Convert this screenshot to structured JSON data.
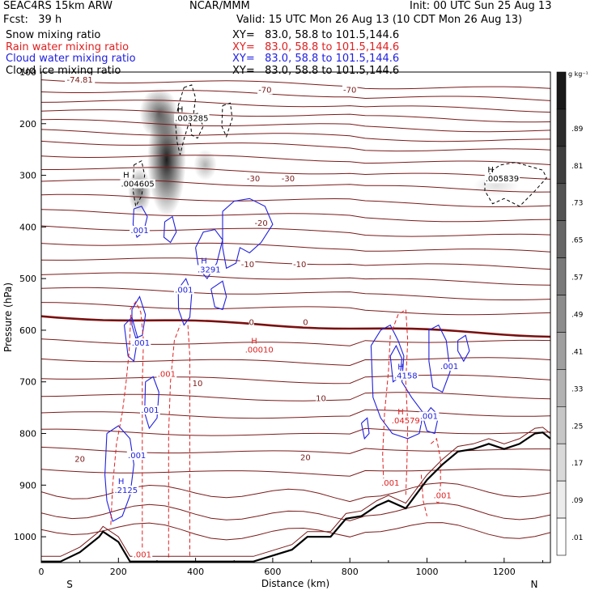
{
  "header": {
    "model": "SEAC4RS 15km ARW",
    "org": "NCAR/MMM",
    "init": "Init: 00 UTC Sun 25 Aug 13",
    "fcst": "Fcst:   39 h",
    "valid": "Valid: 15 UTC Mon 26 Aug 13 (10 CDT Mon 26 Aug 13)",
    "fields": [
      {
        "name": "Snow mixing ratio",
        "xy": "XY=   83.0, 58.8 to 101.5,144.6",
        "color": "#000000"
      },
      {
        "name": "Rain water mixing ratio",
        "xy": "XY=   83.0, 58.8 to 101.5,144.6",
        "color": "#e02020"
      },
      {
        "name": "Cloud water mixing ratio",
        "xy": "XY=   83.0, 58.8 to 101.5,144.6",
        "color": "#2020e0"
      },
      {
        "name": "Cloud ice mixing ratio",
        "xy": "XY=   83.0, 58.8 to 101.5,144.6",
        "color": "#000000"
      }
    ]
  },
  "chart_data": {
    "type": "cross-section",
    "xlabel": "Distance (km)",
    "ylabel": "Pressure (hPa)",
    "xlim": [
      0,
      1320
    ],
    "ylim": [
      1050,
      100
    ],
    "x_ticks": [
      0,
      200,
      400,
      600,
      800,
      1000,
      1200
    ],
    "y_ticks": [
      200,
      300,
      400,
      500,
      600,
      700,
      800,
      900,
      1000
    ],
    "y_top_label": "100",
    "end_labels": {
      "left": "S",
      "right": "N"
    },
    "colorbar": {
      "unit": "g kg⁻¹",
      "levels": [
        ".01",
        ".09",
        ".17",
        ".25",
        ".33",
        ".41",
        ".49",
        ".57",
        ".65",
        ".73",
        ".81",
        ".89"
      ]
    },
    "temperature_contours": {
      "color": "#7a1a1a",
      "labels": [
        {
          "text": "-74.81",
          "x": 100,
          "p": 120
        },
        {
          "text": "-70",
          "x": 580,
          "p": 140
        },
        {
          "text": "-70",
          "x": 800,
          "p": 140
        },
        {
          "text": "-30",
          "x": 550,
          "p": 312
        },
        {
          "text": "-30",
          "x": 640,
          "p": 312
        },
        {
          "text": "-20",
          "x": 570,
          "p": 398
        },
        {
          "text": "-10",
          "x": 535,
          "p": 478
        },
        {
          "text": "-10",
          "x": 670,
          "p": 478
        },
        {
          "text": "0",
          "x": 545,
          "p": 590
        },
        {
          "text": "0",
          "x": 685,
          "p": 590
        },
        {
          "text": "10",
          "x": 405,
          "p": 708
        },
        {
          "text": "10",
          "x": 725,
          "p": 737
        },
        {
          "text": "20",
          "x": 100,
          "p": 855
        },
        {
          "text": "20",
          "x": 685,
          "p": 852
        }
      ]
    },
    "freezing_level": {
      "label": "0",
      "p_start": 573,
      "p_end": 610
    },
    "terrain": [
      [
        0,
        1048
      ],
      [
        50,
        1048
      ],
      [
        100,
        1030
      ],
      [
        150,
        1000
      ],
      [
        160,
        990
      ],
      [
        200,
        1010
      ],
      [
        230,
        1048
      ],
      [
        550,
        1048
      ],
      [
        650,
        1025
      ],
      [
        690,
        1000
      ],
      [
        750,
        1000
      ],
      [
        790,
        965
      ],
      [
        830,
        960
      ],
      [
        870,
        940
      ],
      [
        900,
        930
      ],
      [
        945,
        945
      ],
      [
        1000,
        890
      ],
      [
        1040,
        860
      ],
      [
        1080,
        835
      ],
      [
        1120,
        830
      ],
      [
        1160,
        820
      ],
      [
        1200,
        830
      ],
      [
        1240,
        820
      ],
      [
        1280,
        800
      ],
      [
        1300,
        798
      ],
      [
        1320,
        810
      ]
    ],
    "snow": [
      {
        "x": 325,
        "p": 270,
        "w": 50,
        "h": 220,
        "v": 0.89
      },
      {
        "x": 305,
        "p": 180,
        "w": 50,
        "h": 100,
        "v": 0.6
      },
      {
        "x": 255,
        "p": 330,
        "w": 30,
        "h": 90,
        "v": 0.55
      },
      {
        "x": 425,
        "p": 280,
        "w": 30,
        "h": 60,
        "v": 0.3
      },
      {
        "x": 1180,
        "p": 320,
        "w": 60,
        "h": 40,
        "v": 0.12
      }
    ],
    "cloud_ice_maxima": [
      {
        "text": ".003285",
        "x": 390,
        "p": 195
      },
      {
        "text": ".005839",
        "x": 1195,
        "p": 312
      },
      {
        "text": ".004605",
        "x": 250,
        "p": 322
      }
    ],
    "cloud_water_labels": [
      {
        "text": ".001",
        "x": 255,
        "p": 412
      },
      {
        "text": ".3291",
        "x": 435,
        "p": 488
      },
      {
        "text": ".001",
        "x": 370,
        "p": 527
      },
      {
        "text": ".001",
        "x": 258,
        "p": 630
      },
      {
        "text": ".001",
        "x": 282,
        "p": 760
      },
      {
        "text": ".001",
        "x": 248,
        "p": 848
      },
      {
        "text": ".2125",
        "x": 220,
        "p": 915
      },
      {
        "text": ".4158",
        "x": 945,
        "p": 693
      },
      {
        "text": ".001",
        "x": 1058,
        "p": 675
      },
      {
        "text": ".001",
        "x": 1005,
        "p": 772
      }
    ],
    "rain_labels": [
      {
        "text": ".00010",
        "x": 565,
        "p": 643
      },
      {
        "text": ".001",
        "x": 325,
        "p": 690
      },
      {
        "text": ".04579",
        "x": 945,
        "p": 780
      },
      {
        "text": ".001",
        "x": 905,
        "p": 901
      },
      {
        "text": ".001",
        "x": 1040,
        "p": 925
      },
      {
        "text": ".001",
        "x": 262,
        "p": 1040
      }
    ]
  }
}
